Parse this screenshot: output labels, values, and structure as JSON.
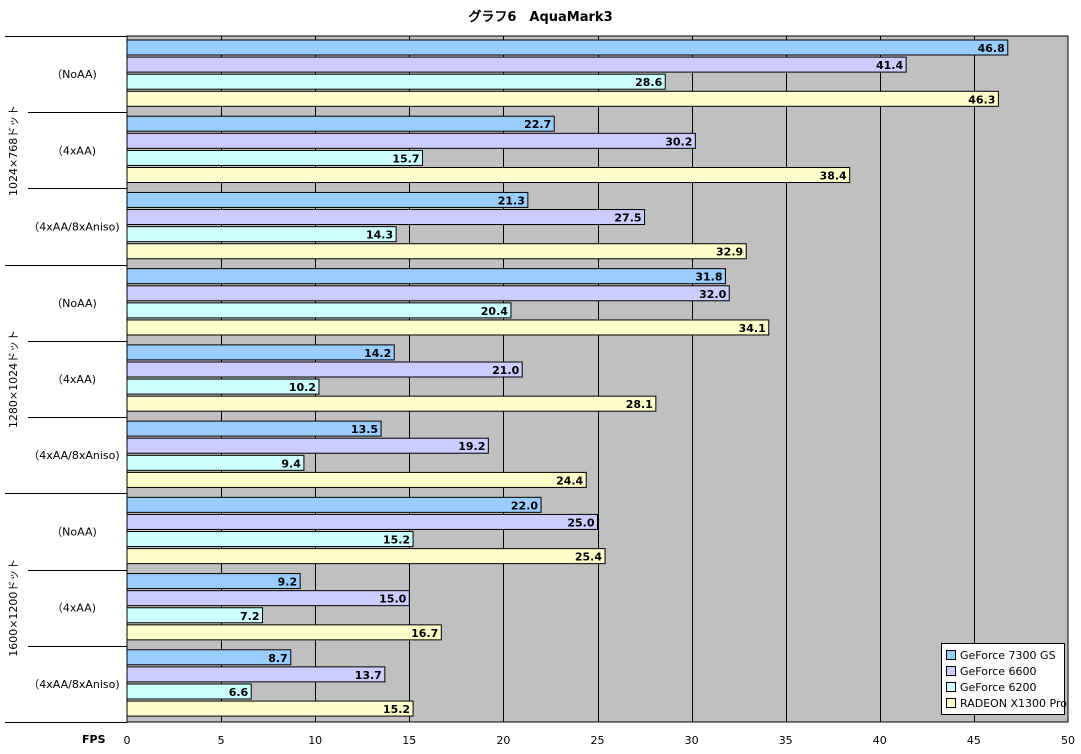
{
  "chart_data": {
    "type": "bar",
    "orientation": "horizontal",
    "title": "グラフ6　AquaMark3",
    "xlabel": "FPS",
    "xlim": [
      0,
      50
    ],
    "xticks": [
      0,
      5,
      10,
      15,
      20,
      25,
      30,
      35,
      40,
      45,
      50
    ],
    "grid": true,
    "legend_position": "bottom-right",
    "groups": [
      "1024×768ドット",
      "1280×1024ドット",
      "1600×1200ドット"
    ],
    "categories": [
      "（NoAA)",
      "（4xAA)",
      "（4xAA/8xAniso)"
    ],
    "series": [
      {
        "name": "GeForce 7300 GS",
        "color": "#99ccff",
        "values": [
          [
            46.8,
            22.7,
            21.3
          ],
          [
            31.8,
            14.2,
            13.5
          ],
          [
            22.0,
            9.2,
            8.7
          ]
        ]
      },
      {
        "name": "GeForce 6600",
        "color": "#ccccff",
        "values": [
          [
            41.4,
            30.2,
            27.5
          ],
          [
            32.0,
            21.0,
            19.2
          ],
          [
            25.0,
            15.0,
            13.7
          ]
        ]
      },
      {
        "name": "GeForce 6200",
        "color": "#ccffff",
        "values": [
          [
            28.6,
            15.7,
            14.3
          ],
          [
            20.4,
            10.2,
            9.4
          ],
          [
            15.2,
            7.2,
            6.6
          ]
        ]
      },
      {
        "name": "RADEON X1300 Pro",
        "color": "#ffffcc",
        "values": [
          [
            46.3,
            38.4,
            32.9
          ],
          [
            34.1,
            28.1,
            24.4
          ],
          [
            25.4,
            16.7,
            15.2
          ]
        ]
      }
    ],
    "value_labels": [
      [
        "46.8",
        "41.4",
        "28.6",
        "46.3"
      ],
      [
        "22.7",
        "30.2",
        "15.7",
        "38.4"
      ],
      [
        "21.3",
        "27.5",
        "14.3",
        "32.9"
      ],
      [
        "31.8",
        "32.0",
        "20.4",
        "34.1"
      ],
      [
        "14.2",
        "21.0",
        "10.2",
        "28.1"
      ],
      [
        "13.5",
        "19.2",
        "9.4",
        "24.4"
      ],
      [
        "22.0",
        "25.0",
        "15.2",
        "25.4"
      ],
      [
        "9.2",
        "15.0",
        "7.2",
        "16.7"
      ],
      [
        "8.7",
        "13.7",
        "6.6",
        "15.2"
      ]
    ],
    "plot_background": "#c0c0c0"
  }
}
